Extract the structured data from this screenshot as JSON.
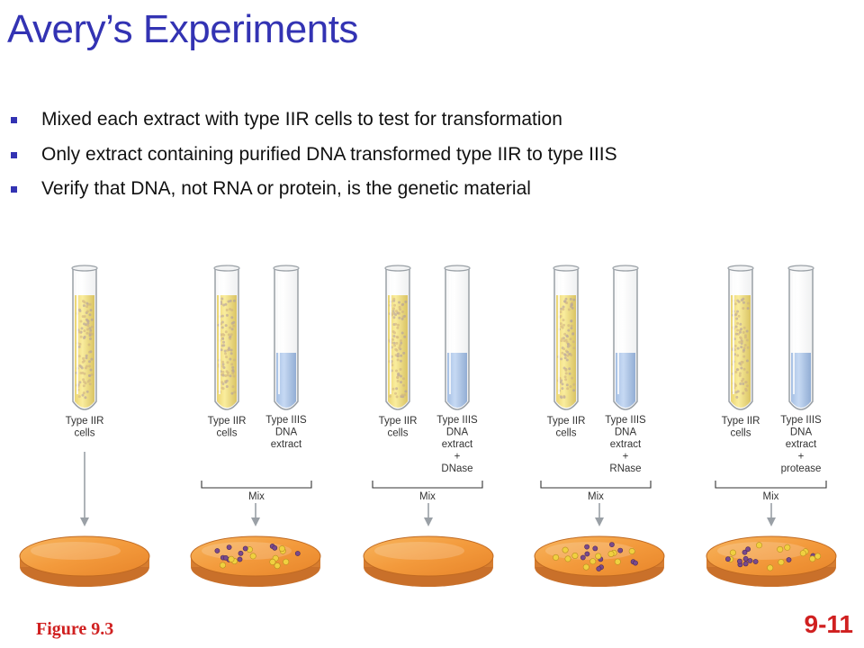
{
  "slide": {
    "title": "Avery’s Experiments",
    "bullets": [
      "Mixed each extract with type IIR cells to test for transformation",
      "Only extract containing purified DNA transformed type IIR to type IIIS",
      "Verify that DNA, not RNA or protein, is the genetic material"
    ],
    "figure_caption": "Figure 9.3",
    "slide_number": "9-11"
  },
  "figure": {
    "experiments": [
      {
        "cells_label": [
          "Type IIR",
          "cells"
        ],
        "extract_label": [],
        "mix_label": "",
        "has_colonies": false
      },
      {
        "cells_label": [
          "Type IIR",
          "cells"
        ],
        "extract_label": [
          "Type IIIS",
          "DNA",
          "extract"
        ],
        "mix_label": "Mix",
        "has_colonies": true
      },
      {
        "cells_label": [
          "Type IIR",
          "cells"
        ],
        "extract_label": [
          "Type IIIS",
          "DNA",
          "extract",
          "+",
          "DNase"
        ],
        "mix_label": "Mix",
        "has_colonies": false
      },
      {
        "cells_label": [
          "Type IIR",
          "cells"
        ],
        "extract_label": [
          "Type IIIS",
          "DNA",
          "extract",
          "+",
          "RNase"
        ],
        "mix_label": "Mix",
        "has_colonies": true
      },
      {
        "cells_label": [
          "Type IIR",
          "cells"
        ],
        "extract_label": [
          "Type IIIS",
          "DNA",
          "extract",
          "+",
          "protease"
        ],
        "mix_label": "Mix",
        "has_colonies": true
      }
    ],
    "colors": {
      "cell_suspension": "#f2d640",
      "dna_extract": "#8fb4e6",
      "agar": "#f39a3c",
      "colony_smooth": "#f0d040",
      "colony_rough": "#7a4a8c"
    }
  }
}
